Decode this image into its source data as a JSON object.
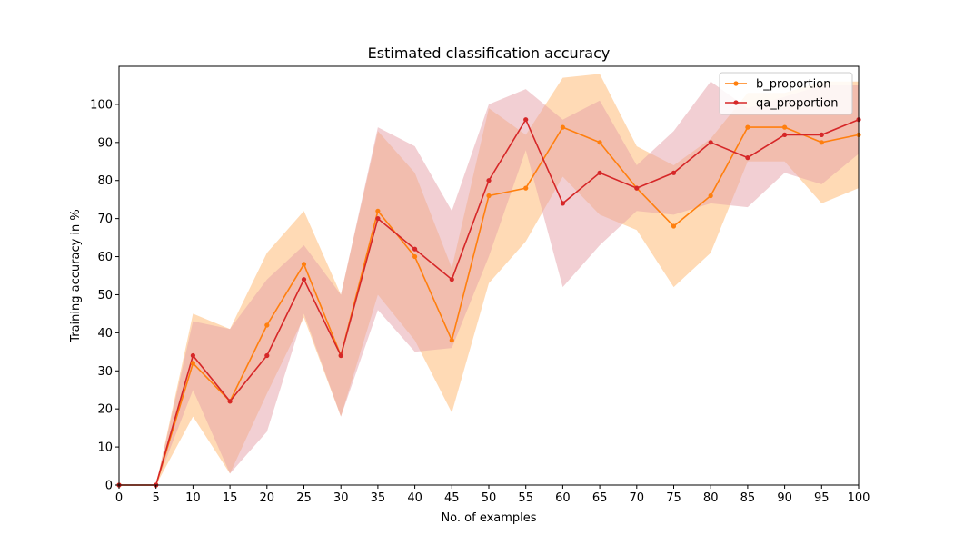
{
  "chart_data": {
    "type": "line",
    "title": "Estimated classification accuracy",
    "xlabel": "No. of examples",
    "ylabel": "Training accuracy in %",
    "xlim": [
      0,
      100
    ],
    "ylim": [
      0,
      110
    ],
    "xticks": [
      0,
      5,
      10,
      15,
      20,
      25,
      30,
      35,
      40,
      45,
      50,
      55,
      60,
      65,
      70,
      75,
      80,
      85,
      90,
      95,
      100
    ],
    "yticks": [
      0,
      10,
      20,
      30,
      40,
      50,
      60,
      70,
      80,
      90,
      100
    ],
    "grid": false,
    "legend_position": "top-right",
    "x": [
      0,
      5,
      10,
      15,
      20,
      25,
      30,
      35,
      40,
      45,
      50,
      55,
      60,
      65,
      70,
      75,
      80,
      85,
      90,
      95,
      100
    ],
    "series": [
      {
        "name": "b_proportion",
        "color": "#ff7f0e",
        "band_color": "#ffbb78",
        "values": [
          0,
          0,
          32,
          22,
          42,
          58,
          34,
          72,
          60,
          38,
          76,
          78,
          94,
          90,
          78,
          68,
          76,
          94,
          94,
          90,
          92
        ],
        "lower": [
          0,
          0,
          18,
          3,
          24,
          44,
          18,
          50,
          38,
          19,
          53,
          64,
          81,
          71,
          67,
          52,
          61,
          85,
          85,
          74,
          78
        ],
        "upper": [
          0,
          0,
          45,
          41,
          61,
          72,
          50,
          93,
          82,
          57,
          99,
          92,
          107,
          108,
          89,
          84,
          91,
          103,
          103,
          106,
          106
        ]
      },
      {
        "name": "qa_proportion",
        "color": "#d62728",
        "band_color": "#e6a0a8",
        "values": [
          0,
          0,
          34,
          22,
          34,
          54,
          34,
          70,
          62,
          54,
          80,
          96,
          74,
          82,
          78,
          82,
          90,
          86,
          92,
          92,
          96
        ],
        "lower": [
          0,
          0,
          25,
          3,
          14,
          45,
          18,
          46,
          35,
          36,
          60,
          88,
          52,
          63,
          72,
          71,
          74,
          73,
          82,
          79,
          87
        ],
        "upper": [
          0,
          0,
          43,
          41,
          54,
          63,
          50,
          94,
          89,
          72,
          100,
          104,
          96,
          101,
          84,
          93,
          106,
          99,
          102,
          105,
          105
        ]
      }
    ]
  }
}
